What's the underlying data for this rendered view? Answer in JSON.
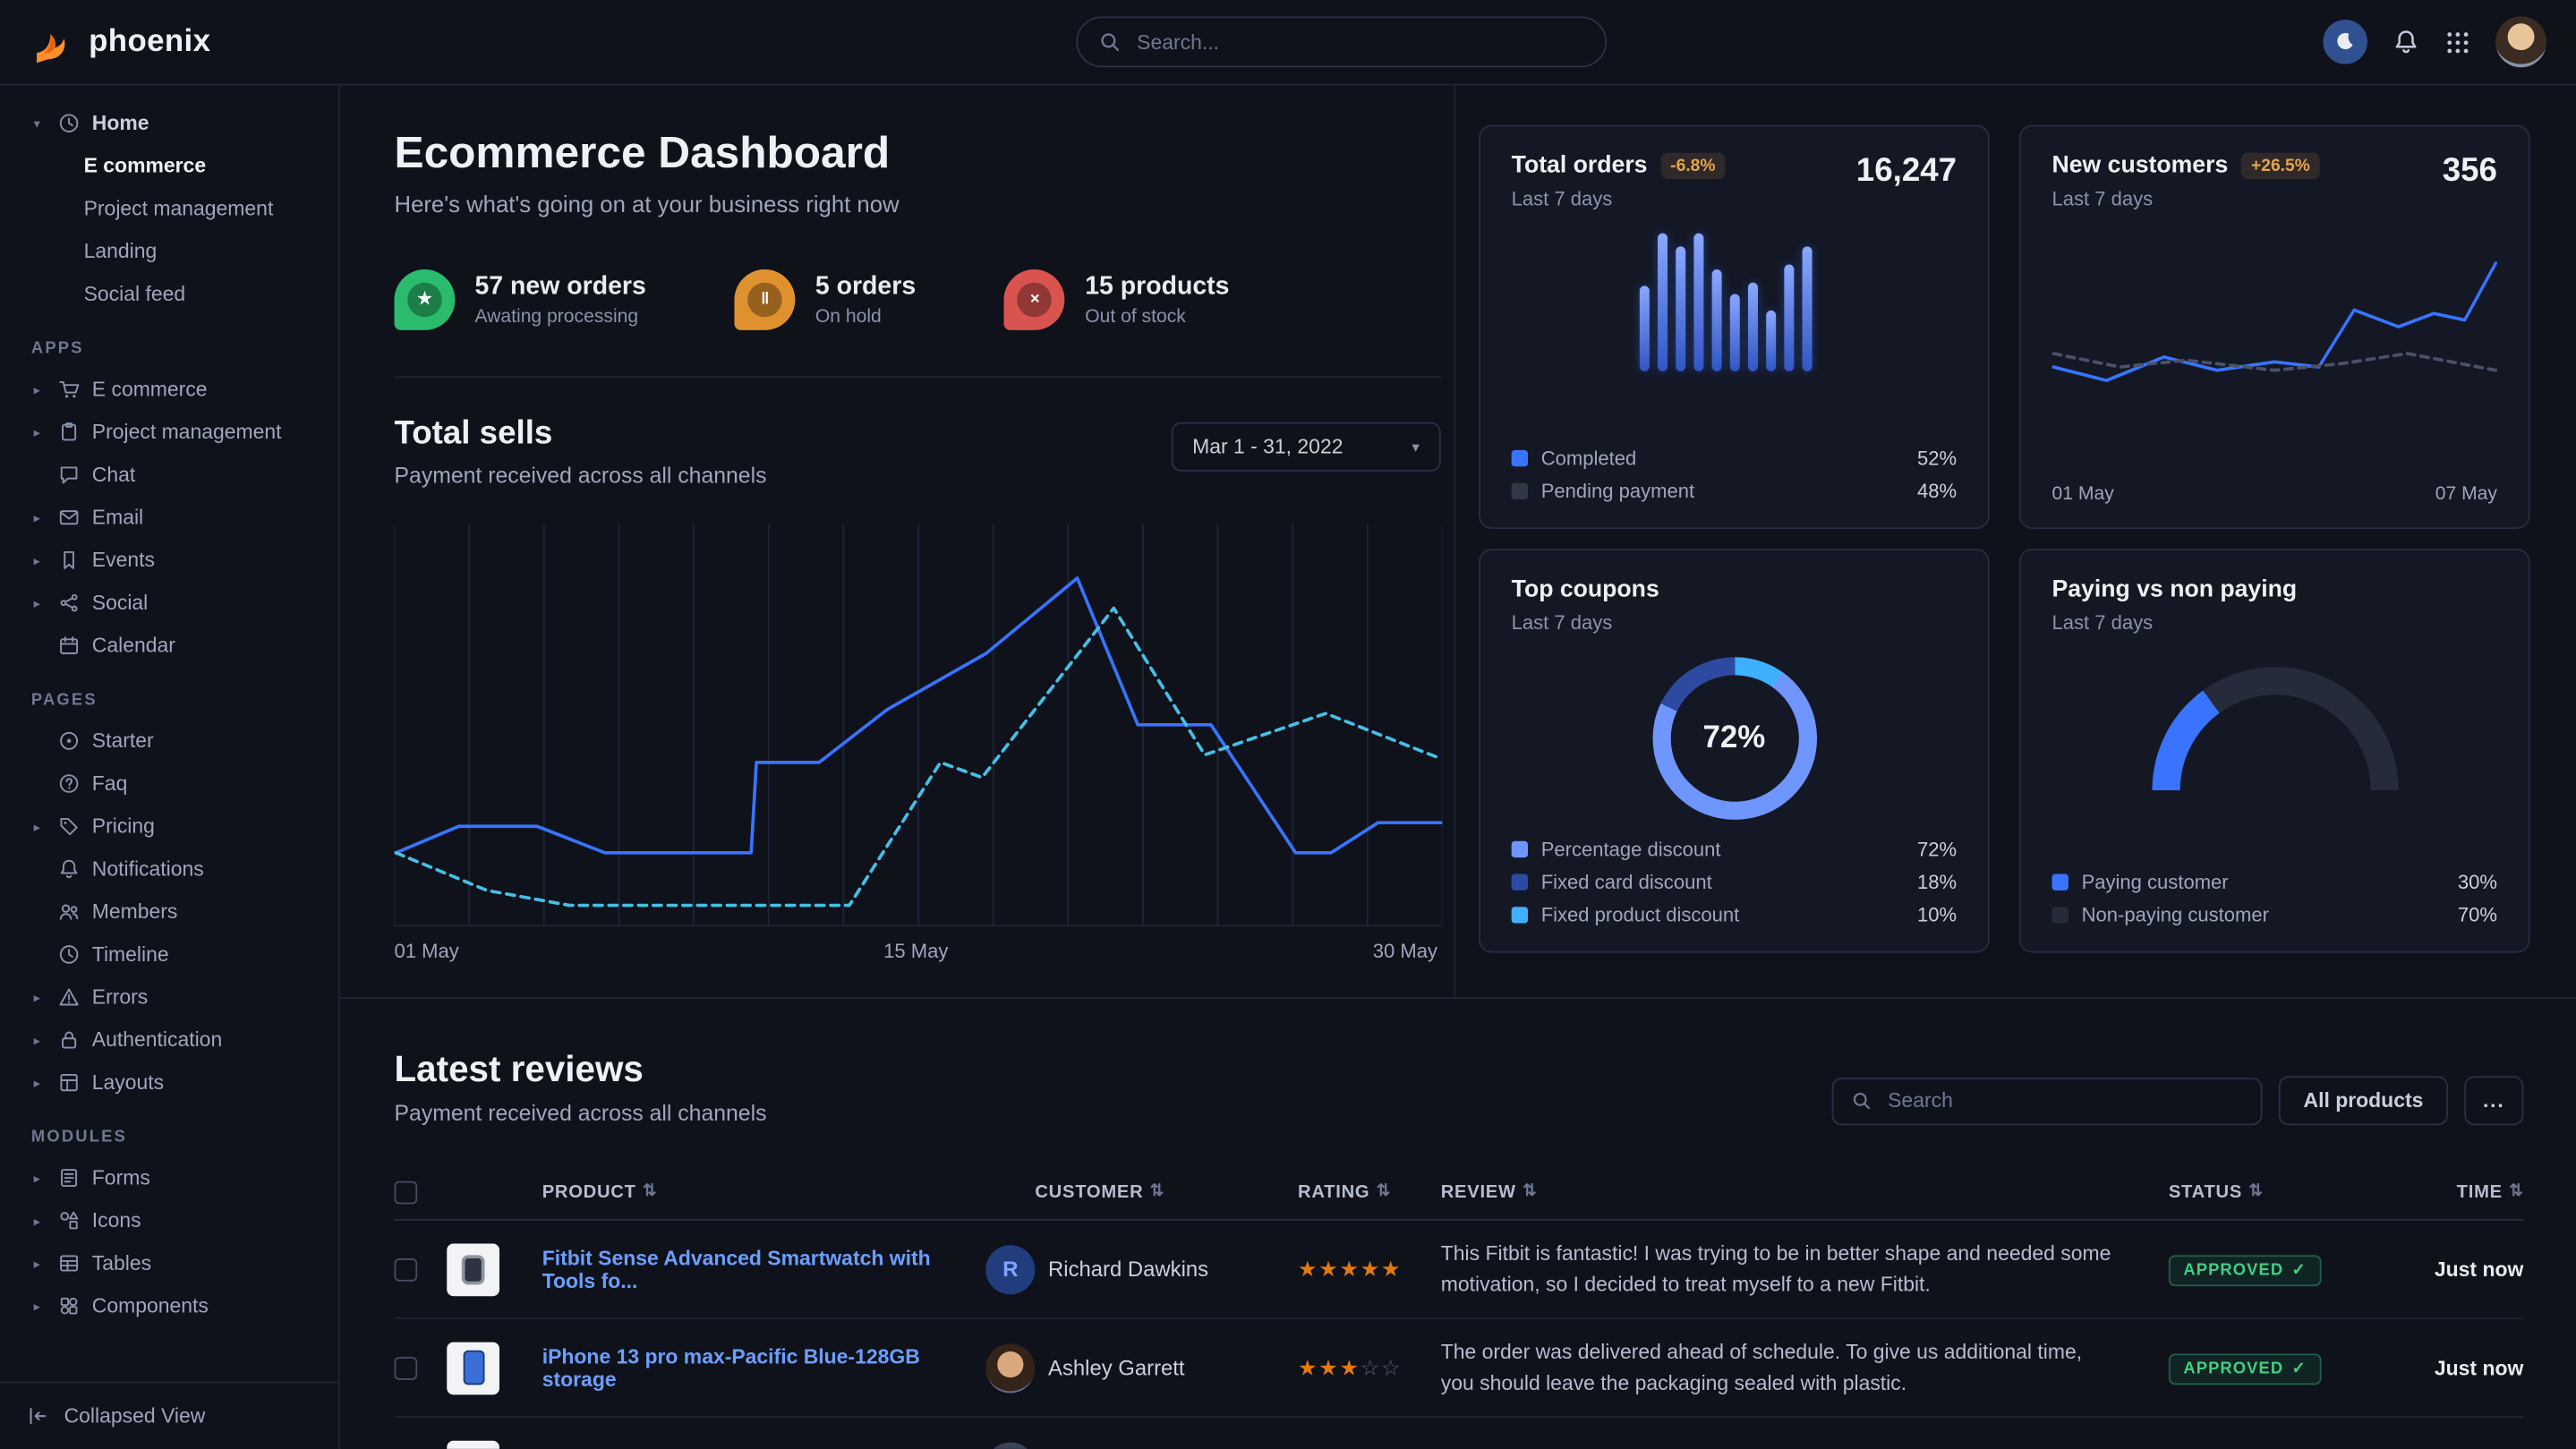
{
  "nav": {
    "brand": "phoenix",
    "search_placeholder": "Search..."
  },
  "colors": {
    "primary": "#3874ff",
    "link": "#6d9eff",
    "warning": "#e5a54b",
    "success": "#40d183",
    "star": "#e5780b"
  },
  "sidebar": {
    "caret_down": "▾",
    "caret_right": "▸",
    "home": {
      "label": "Home",
      "children": [
        {
          "label": "E commerce",
          "active": true
        },
        {
          "label": "Project management"
        },
        {
          "label": "Landing"
        },
        {
          "label": "Social feed"
        }
      ]
    },
    "sections": [
      {
        "title": "APPS",
        "items": [
          {
            "label": "E commerce"
          },
          {
            "label": "Project management"
          },
          {
            "label": "Chat"
          },
          {
            "label": "Email"
          },
          {
            "label": "Events"
          },
          {
            "label": "Social"
          },
          {
            "label": "Calendar"
          }
        ]
      },
      {
        "title": "PAGES",
        "items": [
          {
            "label": "Starter"
          },
          {
            "label": "Faq"
          },
          {
            "label": "Pricing"
          },
          {
            "label": "Notifications"
          },
          {
            "label": "Members"
          },
          {
            "label": "Timeline"
          },
          {
            "label": "Errors"
          },
          {
            "label": "Authentication"
          },
          {
            "label": "Layouts"
          }
        ]
      },
      {
        "title": "MODULES",
        "items": [
          {
            "label": "Forms"
          },
          {
            "label": "Icons"
          },
          {
            "label": "Tables"
          },
          {
            "label": "Components"
          }
        ]
      }
    ],
    "collapsed_view_label": "Collapsed View"
  },
  "header": {
    "title": "Ecommerce Dashboard",
    "subtitle": "Here's what's going on at your business right now",
    "stats": [
      {
        "value": "57 new orders",
        "caption": "Awating processing",
        "color": "#2abb6e",
        "glyph": "★"
      },
      {
        "value": "5 orders",
        "caption": "On hold",
        "color": "#e0912f",
        "glyph": "‖"
      },
      {
        "value": "15 products",
        "caption": "Out of stock",
        "color": "#d9534f",
        "glyph": "×"
      }
    ]
  },
  "total_sells": {
    "title": "Total sells",
    "subtitle": "Payment received across all channels",
    "date_range": "Mar 1 - 31, 2022",
    "chevron": "▾"
  },
  "cards": {
    "total_orders": {
      "title": "Total orders",
      "badge": "-6.8%",
      "period": "Last 7 days",
      "value": "16,247",
      "legend": [
        {
          "label": "Completed",
          "value": "52%",
          "color": "#3874ff"
        },
        {
          "label": "Pending payment",
          "value": "48%",
          "color": "#31374a"
        }
      ]
    },
    "new_customers": {
      "title": "New customers",
      "badge": "+26.5%",
      "period": "Last 7 days",
      "value": "356"
    },
    "top_coupons": {
      "title": "Top coupons",
      "period": "Last 7 days",
      "legend": [
        {
          "label": "Percentage discount",
          "value": "72%",
          "color": "#6f95ff"
        },
        {
          "label": "Fixed card discount",
          "value": "18%",
          "color": "#2e4aa0"
        },
        {
          "label": "Fixed product discount",
          "value": "10%",
          "color": "#3fb0ff"
        }
      ]
    },
    "paying": {
      "title": "Paying vs non paying",
      "period": "Last 7 days",
      "legend": [
        {
          "label": "Paying customer",
          "value": "30%",
          "color": "#3874ff"
        },
        {
          "label": "Non-paying customer",
          "value": "70%",
          "color": "#252b3b"
        }
      ]
    }
  },
  "reviews": {
    "title": "Latest reviews",
    "subtitle": "Payment received across all channels",
    "search_placeholder": "Search",
    "all_products_label": "All products",
    "more_label": "...",
    "sort_glyph": "⇅",
    "columns": [
      "PRODUCT",
      "CUSTOMER",
      "RATING",
      "REVIEW",
      "STATUS",
      "TIME"
    ],
    "rows": [
      {
        "product": "Fitbit Sense Advanced Smartwatch with Tools fo...",
        "customer": "Richard Dawkins",
        "initial": "R",
        "rating": 5,
        "review": "This Fitbit is fantastic! I was trying to be in better shape and needed some motivation, so I decided to treat myself to a new Fitbit.",
        "status": "APPROVED",
        "status_check": "✓",
        "time": "Just now"
      },
      {
        "product": "iPhone 13 pro max-Pacific Blue-128GB storage",
        "customer": "Ashley Garrett",
        "rating": 3,
        "review": "The order was delivered ahead of schedule. To give us additional time, you should leave the packaging sealed with plastic.",
        "status": "APPROVED",
        "status_check": "✓",
        "time": "Just now"
      }
    ]
  },
  "chart_data": [
    {
      "id": "total-sells",
      "type": "line",
      "title": "Total sells",
      "x_ticks": [
        "01 May",
        "15 May",
        "30 May"
      ],
      "x_range": [
        "01 May",
        "30 May"
      ],
      "grid": "vertical",
      "legend_position": "none",
      "series": [
        {
          "name": "Payments (current)",
          "color": "#3874ff",
          "dashed": false,
          "points": [
            [
              0,
              17
            ],
            [
              0.06,
              24
            ],
            [
              0.135,
              24
            ],
            [
              0.2,
              17
            ],
            [
              0.34,
              17
            ],
            [
              0.345,
              41
            ],
            [
              0.405,
              41
            ],
            [
              0.47,
              55
            ],
            [
              0.565,
              70
            ],
            [
              0.652,
              90
            ],
            [
              0.71,
              51
            ],
            [
              0.78,
              51
            ],
            [
              0.861,
              17
            ],
            [
              0.895,
              17
            ],
            [
              0.94,
              25
            ],
            [
              1,
              25
            ]
          ]
        },
        {
          "name": "Payments (previous)",
          "color": "#45c0e6",
          "dashed": true,
          "points": [
            [
              0,
              17
            ],
            [
              0.087,
              7
            ],
            [
              0.166,
              3
            ],
            [
              0.434,
              3
            ],
            [
              0.521,
              41
            ],
            [
              0.561,
              37
            ],
            [
              0.687,
              82
            ],
            [
              0.774,
              43
            ],
            [
              0.89,
              54
            ],
            [
              1,
              42
            ]
          ]
        }
      ]
    },
    {
      "id": "total-orders",
      "type": "bar",
      "title": "Total orders (last 7 days)",
      "values": [
        62,
        100,
        90,
        100,
        74,
        56,
        64,
        44,
        77,
        90
      ]
    },
    {
      "id": "new-customers",
      "type": "line",
      "title": "New customers (last 7 days)",
      "x_ticks": [
        "01 May",
        "07 May"
      ],
      "grid": "off",
      "series": [
        {
          "name": "New customers (current)",
          "color": "#3874ff",
          "dashed": false,
          "points": [
            [
              0,
              30
            ],
            [
              0.12,
              22
            ],
            [
              0.25,
              36
            ],
            [
              0.37,
              28
            ],
            [
              0.5,
              33
            ],
            [
              0.6,
              30
            ],
            [
              0.68,
              64
            ],
            [
              0.78,
              54
            ],
            [
              0.86,
              62
            ],
            [
              0.93,
              58
            ],
            [
              1,
              92
            ]
          ]
        },
        {
          "name": "New customers (previous)",
          "color": "#4a5268",
          "dashed": true,
          "points": [
            [
              0,
              38
            ],
            [
              0.15,
              30
            ],
            [
              0.3,
              34
            ],
            [
              0.5,
              28
            ],
            [
              0.65,
              32
            ],
            [
              0.8,
              38
            ],
            [
              0.9,
              33
            ],
            [
              1,
              28
            ]
          ]
        }
      ]
    },
    {
      "id": "top-coupons",
      "type": "pie",
      "title": "Top coupons",
      "center_label": "72%",
      "slices": [
        {
          "label": "Fixed product discount",
          "value": 10,
          "color": "#3fb0ff"
        },
        {
          "label": "Percentage discount",
          "value": 72,
          "color": "#6f95ff"
        },
        {
          "label": "Fixed card discount",
          "value": 18,
          "color": "#2e4aa0"
        }
      ]
    },
    {
      "id": "paying-gauge",
      "type": "pie",
      "title": "Paying vs non paying",
      "slices": [
        {
          "label": "Paying customer",
          "value": 30,
          "color": "#3874ff"
        },
        {
          "label": "Non-paying customer",
          "value": 70,
          "color": "#252b3b"
        }
      ]
    }
  ]
}
